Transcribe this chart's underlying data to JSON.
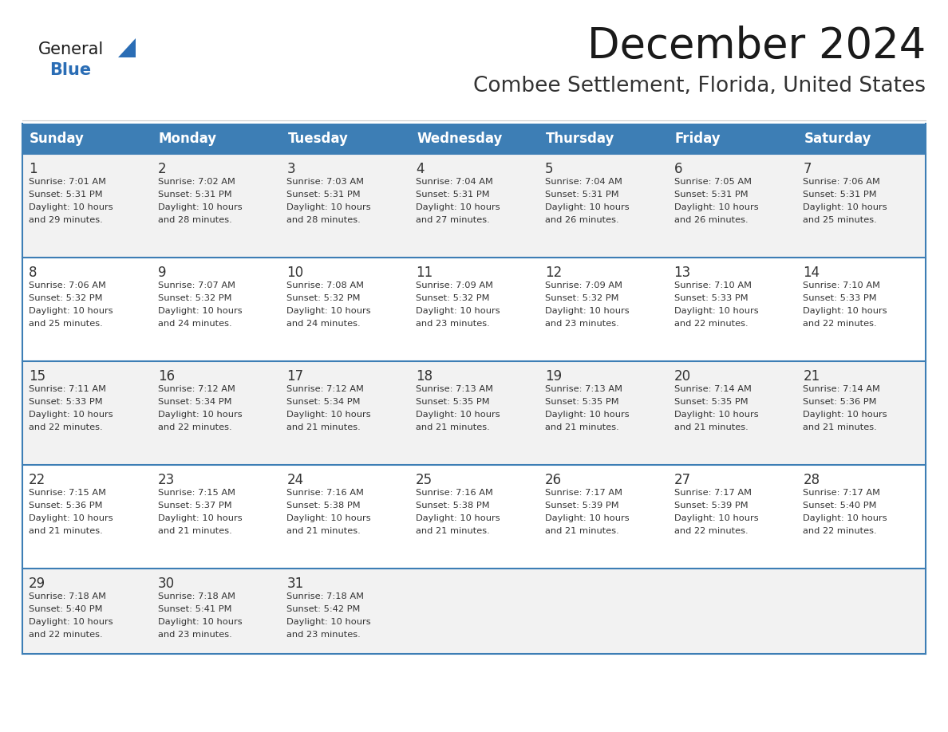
{
  "title": "December 2024",
  "subtitle": "Combee Settlement, Florida, United States",
  "days_of_week": [
    "Sunday",
    "Monday",
    "Tuesday",
    "Wednesday",
    "Thursday",
    "Friday",
    "Saturday"
  ],
  "header_bg": "#3d7eb5",
  "header_text": "#ffffff",
  "cell_bg_gray": "#f2f2f2",
  "cell_bg_white": "#ffffff",
  "row_line_color": "#3d7eb5",
  "text_color": "#333333",
  "calendar_data": [
    {
      "day": 1,
      "col": 0,
      "row": 0,
      "sunrise": "7:01 AM",
      "sunset": "5:31 PM",
      "daylight_hours": 10,
      "daylight_minutes": 29
    },
    {
      "day": 2,
      "col": 1,
      "row": 0,
      "sunrise": "7:02 AM",
      "sunset": "5:31 PM",
      "daylight_hours": 10,
      "daylight_minutes": 28
    },
    {
      "day": 3,
      "col": 2,
      "row": 0,
      "sunrise": "7:03 AM",
      "sunset": "5:31 PM",
      "daylight_hours": 10,
      "daylight_minutes": 28
    },
    {
      "day": 4,
      "col": 3,
      "row": 0,
      "sunrise": "7:04 AM",
      "sunset": "5:31 PM",
      "daylight_hours": 10,
      "daylight_minutes": 27
    },
    {
      "day": 5,
      "col": 4,
      "row": 0,
      "sunrise": "7:04 AM",
      "sunset": "5:31 PM",
      "daylight_hours": 10,
      "daylight_minutes": 26
    },
    {
      "day": 6,
      "col": 5,
      "row": 0,
      "sunrise": "7:05 AM",
      "sunset": "5:31 PM",
      "daylight_hours": 10,
      "daylight_minutes": 26
    },
    {
      "day": 7,
      "col": 6,
      "row": 0,
      "sunrise": "7:06 AM",
      "sunset": "5:31 PM",
      "daylight_hours": 10,
      "daylight_minutes": 25
    },
    {
      "day": 8,
      "col": 0,
      "row": 1,
      "sunrise": "7:06 AM",
      "sunset": "5:32 PM",
      "daylight_hours": 10,
      "daylight_minutes": 25
    },
    {
      "day": 9,
      "col": 1,
      "row": 1,
      "sunrise": "7:07 AM",
      "sunset": "5:32 PM",
      "daylight_hours": 10,
      "daylight_minutes": 24
    },
    {
      "day": 10,
      "col": 2,
      "row": 1,
      "sunrise": "7:08 AM",
      "sunset": "5:32 PM",
      "daylight_hours": 10,
      "daylight_minutes": 24
    },
    {
      "day": 11,
      "col": 3,
      "row": 1,
      "sunrise": "7:09 AM",
      "sunset": "5:32 PM",
      "daylight_hours": 10,
      "daylight_minutes": 23
    },
    {
      "day": 12,
      "col": 4,
      "row": 1,
      "sunrise": "7:09 AM",
      "sunset": "5:32 PM",
      "daylight_hours": 10,
      "daylight_minutes": 23
    },
    {
      "day": 13,
      "col": 5,
      "row": 1,
      "sunrise": "7:10 AM",
      "sunset": "5:33 PM",
      "daylight_hours": 10,
      "daylight_minutes": 22
    },
    {
      "day": 14,
      "col": 6,
      "row": 1,
      "sunrise": "7:10 AM",
      "sunset": "5:33 PM",
      "daylight_hours": 10,
      "daylight_minutes": 22
    },
    {
      "day": 15,
      "col": 0,
      "row": 2,
      "sunrise": "7:11 AM",
      "sunset": "5:33 PM",
      "daylight_hours": 10,
      "daylight_minutes": 22
    },
    {
      "day": 16,
      "col": 1,
      "row": 2,
      "sunrise": "7:12 AM",
      "sunset": "5:34 PM",
      "daylight_hours": 10,
      "daylight_minutes": 22
    },
    {
      "day": 17,
      "col": 2,
      "row": 2,
      "sunrise": "7:12 AM",
      "sunset": "5:34 PM",
      "daylight_hours": 10,
      "daylight_minutes": 21
    },
    {
      "day": 18,
      "col": 3,
      "row": 2,
      "sunrise": "7:13 AM",
      "sunset": "5:35 PM",
      "daylight_hours": 10,
      "daylight_minutes": 21
    },
    {
      "day": 19,
      "col": 4,
      "row": 2,
      "sunrise": "7:13 AM",
      "sunset": "5:35 PM",
      "daylight_hours": 10,
      "daylight_minutes": 21
    },
    {
      "day": 20,
      "col": 5,
      "row": 2,
      "sunrise": "7:14 AM",
      "sunset": "5:35 PM",
      "daylight_hours": 10,
      "daylight_minutes": 21
    },
    {
      "day": 21,
      "col": 6,
      "row": 2,
      "sunrise": "7:14 AM",
      "sunset": "5:36 PM",
      "daylight_hours": 10,
      "daylight_minutes": 21
    },
    {
      "day": 22,
      "col": 0,
      "row": 3,
      "sunrise": "7:15 AM",
      "sunset": "5:36 PM",
      "daylight_hours": 10,
      "daylight_minutes": 21
    },
    {
      "day": 23,
      "col": 1,
      "row": 3,
      "sunrise": "7:15 AM",
      "sunset": "5:37 PM",
      "daylight_hours": 10,
      "daylight_minutes": 21
    },
    {
      "day": 24,
      "col": 2,
      "row": 3,
      "sunrise": "7:16 AM",
      "sunset": "5:38 PM",
      "daylight_hours": 10,
      "daylight_minutes": 21
    },
    {
      "day": 25,
      "col": 3,
      "row": 3,
      "sunrise": "7:16 AM",
      "sunset": "5:38 PM",
      "daylight_hours": 10,
      "daylight_minutes": 21
    },
    {
      "day": 26,
      "col": 4,
      "row": 3,
      "sunrise": "7:17 AM",
      "sunset": "5:39 PM",
      "daylight_hours": 10,
      "daylight_minutes": 21
    },
    {
      "day": 27,
      "col": 5,
      "row": 3,
      "sunrise": "7:17 AM",
      "sunset": "5:39 PM",
      "daylight_hours": 10,
      "daylight_minutes": 22
    },
    {
      "day": 28,
      "col": 6,
      "row": 3,
      "sunrise": "7:17 AM",
      "sunset": "5:40 PM",
      "daylight_hours": 10,
      "daylight_minutes": 22
    },
    {
      "day": 29,
      "col": 0,
      "row": 4,
      "sunrise": "7:18 AM",
      "sunset": "5:40 PM",
      "daylight_hours": 10,
      "daylight_minutes": 22
    },
    {
      "day": 30,
      "col": 1,
      "row": 4,
      "sunrise": "7:18 AM",
      "sunset": "5:41 PM",
      "daylight_hours": 10,
      "daylight_minutes": 23
    },
    {
      "day": 31,
      "col": 2,
      "row": 4,
      "sunrise": "7:18 AM",
      "sunset": "5:42 PM",
      "daylight_hours": 10,
      "daylight_minutes": 23
    }
  ],
  "logo_triangle_color": "#2a6db5",
  "fig_width": 11.88,
  "fig_height": 9.18,
  "dpi": 100
}
